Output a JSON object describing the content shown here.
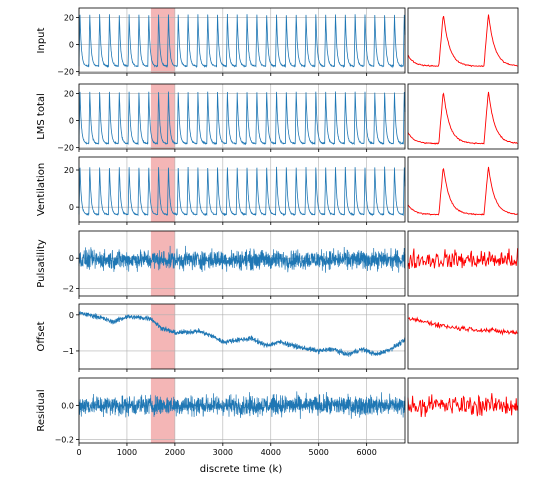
{
  "chart_data": {
    "type": "line",
    "xlabel": "discrete time (k)",
    "xlim": [
      0,
      6800
    ],
    "x_ticks": [
      0,
      1000,
      2000,
      3000,
      4000,
      5000,
      6000
    ],
    "highlight_span": [
      1500,
      2000
    ],
    "grid": true,
    "colors": {
      "main": "#1f77b4",
      "zoom": "#ff0000",
      "highlight": "#f4b6b6",
      "grid": "#b0b0b0"
    },
    "panels": [
      {
        "ylabel": "Input",
        "ylim": [
          -21,
          27
        ],
        "y_ticks": [
          -20,
          0,
          20
        ],
        "y_tick_labels": [
          "−20",
          "0",
          "20"
        ],
        "signal": "breath",
        "period_samples": 205,
        "peak_value": 23,
        "trough_value": -16
      },
      {
        "ylabel": "LMS total",
        "ylim": [
          -21,
          27
        ],
        "y_ticks": [
          -20,
          0,
          20
        ],
        "y_tick_labels": [
          "−20",
          "0",
          "20"
        ],
        "signal": "breath",
        "period_samples": 205,
        "peak_value": 22,
        "trough_value": -17
      },
      {
        "ylabel": "Ventilation",
        "ylim": [
          -8,
          27
        ],
        "y_ticks": [
          0,
          20
        ],
        "y_tick_labels": [
          "0",
          "20"
        ],
        "signal": "breath",
        "period_samples": 205,
        "peak_value": 22,
        "trough_value": -4
      },
      {
        "ylabel": "Pulsatility",
        "ylim": [
          -2.5,
          1.8
        ],
        "y_ticks": [
          -2,
          0
        ],
        "y_tick_labels": [
          "−2",
          "0"
        ],
        "signal": "noise",
        "mean_value": -0.1,
        "spread": 0.55
      },
      {
        "ylabel": "Offset",
        "ylim": [
          -1.5,
          0.3
        ],
        "y_ticks": [
          -1,
          0
        ],
        "y_tick_labels": [
          "−1",
          "0"
        ],
        "signal": "drift",
        "level_points": [
          [
            0,
            0.05
          ],
          [
            400,
            -0.05
          ],
          [
            700,
            -0.2
          ],
          [
            1000,
            -0.05
          ],
          [
            1500,
            -0.1
          ],
          [
            1700,
            -0.35
          ],
          [
            2000,
            -0.5
          ],
          [
            2500,
            -0.45
          ],
          [
            2800,
            -0.6
          ],
          [
            3000,
            -0.75
          ],
          [
            3300,
            -0.7
          ],
          [
            3600,
            -0.65
          ],
          [
            3900,
            -0.85
          ],
          [
            4200,
            -0.75
          ],
          [
            4600,
            -0.9
          ],
          [
            5000,
            -1.0
          ],
          [
            5300,
            -0.95
          ],
          [
            5600,
            -1.1
          ],
          [
            5900,
            -0.95
          ],
          [
            6200,
            -1.1
          ],
          [
            6500,
            -0.95
          ],
          [
            6800,
            -0.7
          ]
        ]
      },
      {
        "ylabel": "Residual",
        "ylim": [
          -0.22,
          0.16
        ],
        "y_ticks": [
          -0.2,
          0.0
        ],
        "y_tick_labels": [
          "−0.2",
          "0.0"
        ],
        "signal": "noise",
        "mean_value": 0.0,
        "spread": 0.05
      }
    ]
  }
}
